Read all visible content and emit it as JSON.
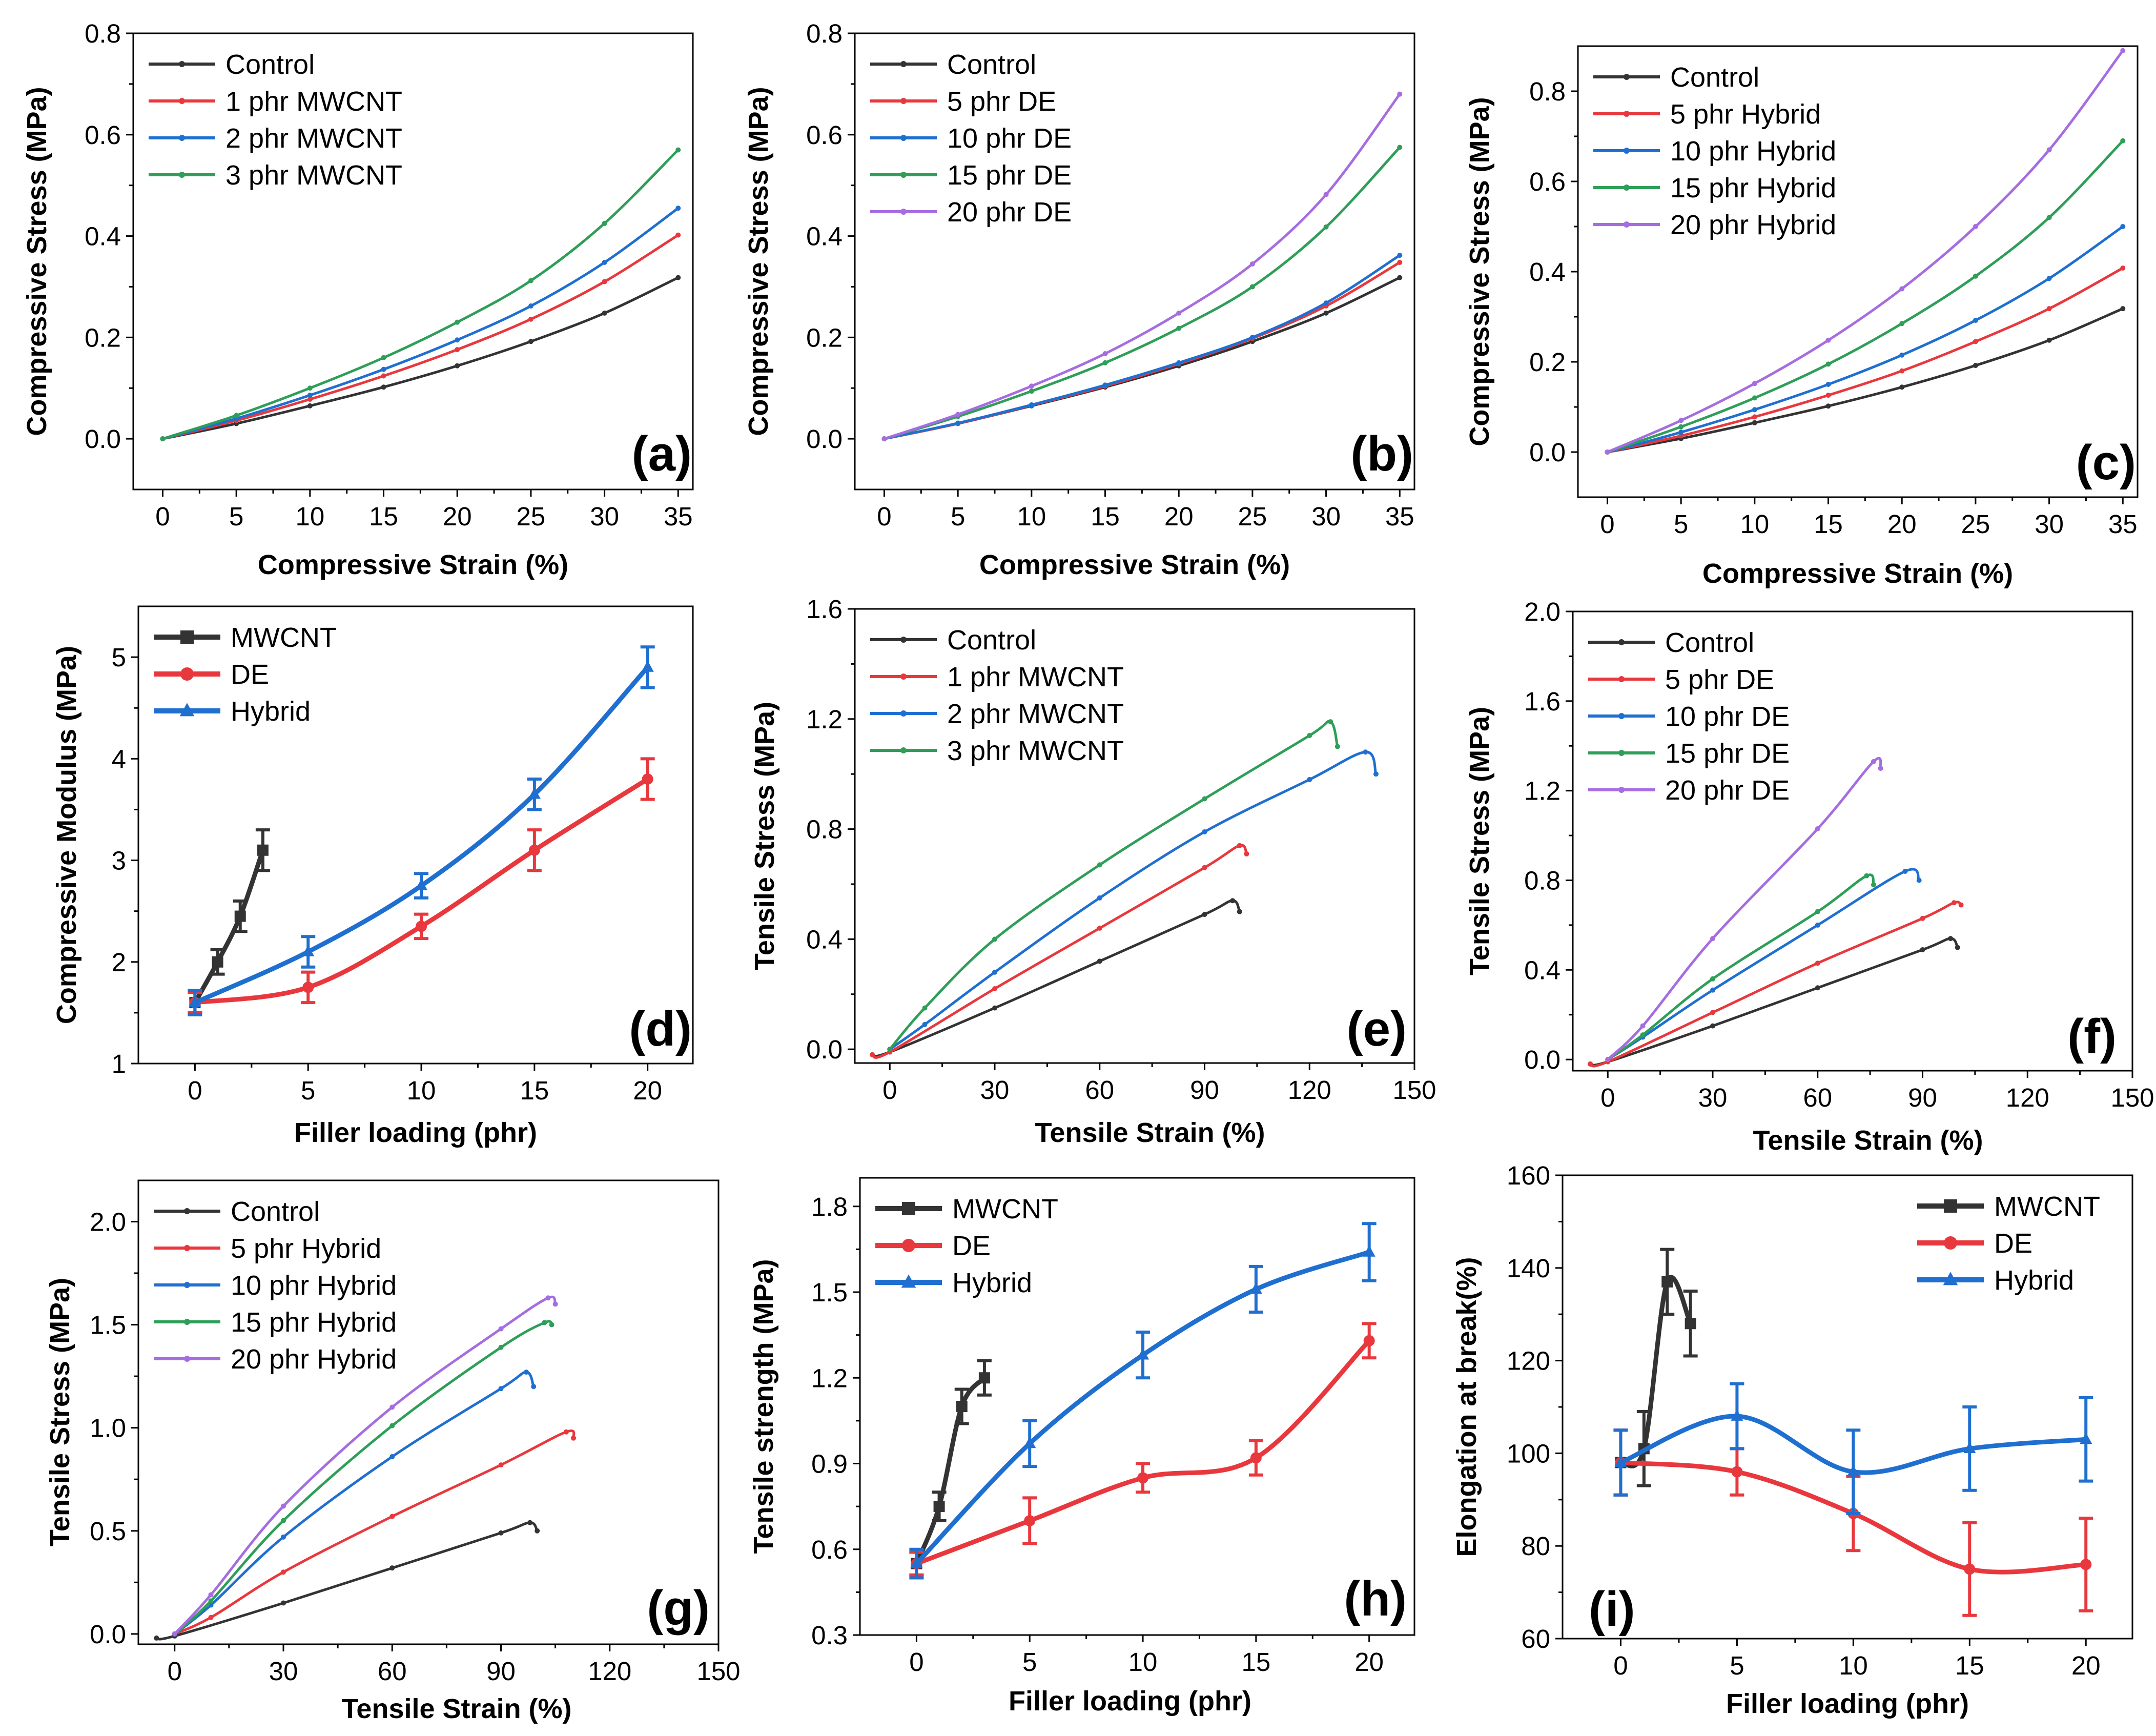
{
  "colors": {
    "Control": "#333333",
    "MWCNT": "#333333",
    "DE": "#e8383d",
    "Hybrid": "#1f6fd1",
    "red": "#e8383d",
    "blue": "#1f6fd1",
    "green": "#2e9e58",
    "purple": "#a56de0"
  },
  "chart_data": [
    {
      "id": "a",
      "type": "line",
      "panel_label": "(a)",
      "xlabel": "Compressive Strain (%)",
      "ylabel": "Compressive Stress (MPa)",
      "xlim": [
        -2,
        36
      ],
      "ylim": [
        -0.1,
        0.8
      ],
      "xticks": [
        0,
        5,
        10,
        15,
        20,
        25,
        30,
        35
      ],
      "yticks": [
        0.0,
        0.2,
        0.4,
        0.6,
        0.8
      ],
      "ydec": 1,
      "legend": "top-left",
      "series": [
        {
          "name": "Control",
          "color": "#333333",
          "x": [
            0,
            5,
            10,
            15,
            20,
            25,
            30,
            35
          ],
          "y": [
            0,
            0.03,
            0.065,
            0.102,
            0.144,
            0.192,
            0.248,
            0.318
          ]
        },
        {
          "name": "1 phr MWCNT",
          "color": "#e8383d",
          "x": [
            0,
            5,
            10,
            15,
            20,
            25,
            30,
            35
          ],
          "y": [
            0,
            0.036,
            0.078,
            0.124,
            0.176,
            0.236,
            0.31,
            0.402
          ]
        },
        {
          "name": "2 phr MWCNT",
          "color": "#1f6fd1",
          "x": [
            0,
            5,
            10,
            15,
            20,
            25,
            30,
            35
          ],
          "y": [
            0,
            0.04,
            0.086,
            0.137,
            0.195,
            0.262,
            0.348,
            0.455
          ]
        },
        {
          "name": "3 phr MWCNT",
          "color": "#2e9e58",
          "x": [
            0,
            5,
            10,
            15,
            20,
            25,
            30,
            35
          ],
          "y": [
            0,
            0.046,
            0.1,
            0.16,
            0.23,
            0.312,
            0.425,
            0.57
          ]
        }
      ]
    },
    {
      "id": "b",
      "type": "line",
      "panel_label": "(b)",
      "xlabel": "Compressive Strain (%)",
      "ylabel": "Compressive Stress (MPa)",
      "xlim": [
        -2,
        36
      ],
      "ylim": [
        -0.1,
        0.8
      ],
      "xticks": [
        0,
        5,
        10,
        15,
        20,
        25,
        30,
        35
      ],
      "yticks": [
        0.0,
        0.2,
        0.4,
        0.6,
        0.8
      ],
      "ydec": 1,
      "legend": "top-left",
      "series": [
        {
          "name": "Control",
          "color": "#333333",
          "x": [
            0,
            5,
            10,
            15,
            20,
            25,
            30,
            35
          ],
          "y": [
            0,
            0.03,
            0.065,
            0.102,
            0.144,
            0.192,
            0.248,
            0.318
          ]
        },
        {
          "name": "5 phr DE",
          "color": "#e8383d",
          "x": [
            0,
            5,
            10,
            15,
            20,
            25,
            30,
            35
          ],
          "y": [
            0,
            0.03,
            0.066,
            0.104,
            0.148,
            0.198,
            0.262,
            0.348
          ]
        },
        {
          "name": "10 phr DE",
          "color": "#1f6fd1",
          "x": [
            0,
            5,
            10,
            15,
            20,
            25,
            30,
            35
          ],
          "y": [
            0,
            0.031,
            0.067,
            0.106,
            0.15,
            0.2,
            0.268,
            0.362
          ]
        },
        {
          "name": "15 phr DE",
          "color": "#2e9e58",
          "x": [
            0,
            5,
            10,
            15,
            20,
            25,
            30,
            35
          ],
          "y": [
            0,
            0.044,
            0.094,
            0.15,
            0.218,
            0.3,
            0.418,
            0.575
          ]
        },
        {
          "name": "20 phr DE",
          "color": "#a56de0",
          "x": [
            0,
            5,
            10,
            15,
            20,
            25,
            30,
            35
          ],
          "y": [
            0,
            0.048,
            0.104,
            0.168,
            0.248,
            0.345,
            0.482,
            0.68
          ]
        }
      ]
    },
    {
      "id": "c",
      "type": "line",
      "panel_label": "(c)",
      "xlabel": "Compressive Strain (%)",
      "ylabel": "Compressive Stress (MPa)",
      "xlim": [
        -2,
        36
      ],
      "ylim": [
        -0.1,
        0.9
      ],
      "xticks": [
        0,
        5,
        10,
        15,
        20,
        25,
        30,
        35
      ],
      "yticks": [
        0.0,
        0.2,
        0.4,
        0.6,
        0.8
      ],
      "ydec": 1,
      "legend": "top-left",
      "series": [
        {
          "name": "Control",
          "color": "#333333",
          "x": [
            0,
            5,
            10,
            15,
            20,
            25,
            30,
            35
          ],
          "y": [
            0,
            0.03,
            0.065,
            0.102,
            0.144,
            0.192,
            0.248,
            0.318
          ]
        },
        {
          "name": "5 phr Hybrid",
          "color": "#e8383d",
          "x": [
            0,
            5,
            10,
            15,
            20,
            25,
            30,
            35
          ],
          "y": [
            0,
            0.036,
            0.078,
            0.126,
            0.18,
            0.245,
            0.318,
            0.408
          ]
        },
        {
          "name": "10 phr Hybrid",
          "color": "#1f6fd1",
          "x": [
            0,
            5,
            10,
            15,
            20,
            25,
            30,
            35
          ],
          "y": [
            0,
            0.044,
            0.094,
            0.15,
            0.215,
            0.292,
            0.385,
            0.5
          ]
        },
        {
          "name": "15 phr Hybrid",
          "color": "#2e9e58",
          "x": [
            0,
            5,
            10,
            15,
            20,
            25,
            30,
            35
          ],
          "y": [
            0,
            0.056,
            0.12,
            0.195,
            0.285,
            0.39,
            0.52,
            0.69
          ]
        },
        {
          "name": "20 phr Hybrid",
          "color": "#a56de0",
          "x": [
            0,
            5,
            10,
            15,
            20,
            25,
            30,
            35
          ],
          "y": [
            0,
            0.07,
            0.152,
            0.248,
            0.362,
            0.5,
            0.67,
            0.89
          ]
        }
      ]
    },
    {
      "id": "d",
      "type": "line",
      "panel_label": "(d)",
      "xlabel": "Filler loading (phr)",
      "ylabel": "Compressive Modulus (MPa)",
      "xlim": [
        -2.5,
        22
      ],
      "ylim": [
        1,
        5.5
      ],
      "xticks": [
        0,
        5,
        10,
        15,
        20
      ],
      "yticks": [
        1,
        2,
        3,
        4,
        5
      ],
      "ydec": 0,
      "legend": "top-left",
      "series": [
        {
          "name": "MWCNT",
          "color": "#333333",
          "marker": "square",
          "x": [
            0,
            1,
            2,
            3
          ],
          "y": [
            1.6,
            2.0,
            2.45,
            3.1
          ],
          "err": [
            0.1,
            0.12,
            0.15,
            0.2
          ]
        },
        {
          "name": "DE",
          "color": "#e8383d",
          "marker": "circle",
          "x": [
            0,
            5,
            10,
            15,
            20
          ],
          "y": [
            1.6,
            1.75,
            2.35,
            3.1,
            3.8
          ],
          "err": [
            0.1,
            0.15,
            0.12,
            0.2,
            0.2
          ]
        },
        {
          "name": "Hybrid",
          "color": "#1f6fd1",
          "marker": "triangle",
          "x": [
            0,
            5,
            10,
            15,
            20
          ],
          "y": [
            1.6,
            2.1,
            2.75,
            3.65,
            4.9
          ],
          "err": [
            0.12,
            0.15,
            0.12,
            0.15,
            0.2
          ]
        }
      ]
    },
    {
      "id": "e",
      "type": "line",
      "panel_label": "(e)",
      "xlabel": "Tensile Strain (%)",
      "ylabel": "Tensile Stress (MPa)",
      "xlim": [
        -10,
        150
      ],
      "ylim": [
        -0.05,
        1.6
      ],
      "xticks": [
        0,
        30,
        60,
        90,
        120,
        150
      ],
      "yticks": [
        0.0,
        0.4,
        0.8,
        1.2,
        1.6
      ],
      "ydec": 1,
      "legend": "top-left",
      "series": [
        {
          "name": "Control",
          "color": "#333333",
          "x": [
            -5,
            0,
            30,
            60,
            90,
            98,
            100
          ],
          "y": [
            -0.02,
            -0.01,
            0.15,
            0.32,
            0.49,
            0.54,
            0.5
          ]
        },
        {
          "name": "1 phr MWCNT",
          "color": "#e8383d",
          "x": [
            -5,
            0,
            30,
            60,
            90,
            100,
            102
          ],
          "y": [
            -0.02,
            -0.01,
            0.22,
            0.44,
            0.66,
            0.74,
            0.71
          ]
        },
        {
          "name": "2 phr MWCNT",
          "color": "#1f6fd1",
          "x": [
            0,
            10,
            30,
            60,
            90,
            120,
            136,
            139
          ],
          "y": [
            0,
            0.09,
            0.28,
            0.55,
            0.79,
            0.98,
            1.08,
            1.0
          ]
        },
        {
          "name": "3 phr MWCNT",
          "color": "#2e9e58",
          "x": [
            0,
            10,
            30,
            60,
            90,
            120,
            126,
            128
          ],
          "y": [
            0,
            0.15,
            0.4,
            0.67,
            0.91,
            1.14,
            1.19,
            1.1
          ]
        }
      ]
    },
    {
      "id": "f",
      "type": "line",
      "panel_label": "(f)",
      "xlabel": "Tensile Strain (%)",
      "ylabel": "Tensile Stress (MPa)",
      "xlim": [
        -10,
        150
      ],
      "ylim": [
        -0.05,
        2.0
      ],
      "xticks": [
        0,
        30,
        60,
        90,
        120,
        150
      ],
      "yticks": [
        0.0,
        0.4,
        0.8,
        1.2,
        1.6,
        2.0
      ],
      "ydec": 1,
      "legend": "top-left",
      "series": [
        {
          "name": "Control",
          "color": "#333333",
          "x": [
            -5,
            0,
            30,
            60,
            90,
            98,
            100
          ],
          "y": [
            -0.02,
            -0.01,
            0.15,
            0.32,
            0.49,
            0.54,
            0.5
          ]
        },
        {
          "name": "5 phr DE",
          "color": "#e8383d",
          "x": [
            -5,
            0,
            30,
            60,
            90,
            99,
            101
          ],
          "y": [
            -0.02,
            -0.01,
            0.21,
            0.43,
            0.63,
            0.7,
            0.69
          ]
        },
        {
          "name": "10 phr DE",
          "color": "#1f6fd1",
          "x": [
            0,
            10,
            30,
            60,
            85,
            89
          ],
          "y": [
            0,
            0.1,
            0.31,
            0.6,
            0.84,
            0.8
          ]
        },
        {
          "name": "15 phr DE",
          "color": "#2e9e58",
          "x": [
            0,
            10,
            30,
            60,
            74,
            76
          ],
          "y": [
            0,
            0.11,
            0.36,
            0.66,
            0.82,
            0.78
          ]
        },
        {
          "name": "20 phr DE",
          "color": "#a56de0",
          "x": [
            0,
            10,
            30,
            60,
            76,
            78
          ],
          "y": [
            0,
            0.15,
            0.54,
            1.03,
            1.33,
            1.3
          ]
        }
      ]
    },
    {
      "id": "g",
      "type": "line",
      "panel_label": "(g)",
      "xlabel": "Tensile Strain (%)",
      "ylabel": "Tensile Stress (MPa)",
      "xlim": [
        -10,
        150
      ],
      "ylim": [
        -0.05,
        2.2
      ],
      "xticks": [
        0,
        30,
        60,
        90,
        120,
        150
      ],
      "yticks": [
        0.0,
        0.5,
        1.0,
        1.5,
        2.0
      ],
      "ydec": 1,
      "legend": "top-left",
      "series": [
        {
          "name": "Control",
          "color": "#333333",
          "x": [
            -5,
            0,
            30,
            60,
            90,
            98,
            100
          ],
          "y": [
            -0.02,
            -0.01,
            0.15,
            0.32,
            0.49,
            0.54,
            0.5
          ]
        },
        {
          "name": "5 phr Hybrid",
          "color": "#e8383d",
          "x": [
            0,
            10,
            30,
            60,
            90,
            108,
            110
          ],
          "y": [
            0,
            0.08,
            0.3,
            0.57,
            0.82,
            0.98,
            0.95
          ]
        },
        {
          "name": "10 phr Hybrid",
          "color": "#1f6fd1",
          "x": [
            0,
            10,
            30,
            60,
            90,
            97,
            99
          ],
          "y": [
            0,
            0.14,
            0.47,
            0.86,
            1.19,
            1.27,
            1.2
          ]
        },
        {
          "name": "15 phr Hybrid",
          "color": "#2e9e58",
          "x": [
            0,
            10,
            30,
            60,
            90,
            102,
            104
          ],
          "y": [
            0,
            0.16,
            0.55,
            1.01,
            1.39,
            1.51,
            1.5
          ]
        },
        {
          "name": "20 phr Hybrid",
          "color": "#a56de0",
          "x": [
            0,
            10,
            30,
            60,
            90,
            103,
            105
          ],
          "y": [
            0,
            0.19,
            0.62,
            1.1,
            1.48,
            1.63,
            1.6
          ]
        }
      ]
    },
    {
      "id": "h",
      "type": "line",
      "panel_label": "(h)",
      "xlabel": "Filler loading (phr)",
      "ylabel": "Tensile strength (MPa)",
      "xlim": [
        -2.5,
        22
      ],
      "ylim": [
        0.3,
        1.9
      ],
      "xticks": [
        0,
        5,
        10,
        15,
        20
      ],
      "yticks": [
        0.3,
        0.6,
        0.9,
        1.2,
        1.5,
        1.8
      ],
      "ydec": 1,
      "legend": "top-left",
      "series": [
        {
          "name": "MWCNT",
          "color": "#333333",
          "marker": "square",
          "x": [
            0,
            1,
            2,
            3
          ],
          "y": [
            0.55,
            0.75,
            1.1,
            1.2
          ],
          "err": [
            0.04,
            0.05,
            0.06,
            0.06
          ]
        },
        {
          "name": "DE",
          "color": "#e8383d",
          "marker": "circle",
          "x": [
            0,
            5,
            10,
            15,
            20
          ],
          "y": [
            0.55,
            0.7,
            0.85,
            0.92,
            1.33
          ],
          "err": [
            0.04,
            0.08,
            0.05,
            0.06,
            0.06
          ]
        },
        {
          "name": "Hybrid",
          "color": "#1f6fd1",
          "marker": "triangle",
          "x": [
            0,
            5,
            10,
            15,
            20
          ],
          "y": [
            0.55,
            0.97,
            1.28,
            1.51,
            1.64
          ],
          "err": [
            0.05,
            0.08,
            0.08,
            0.08,
            0.1
          ]
        }
      ]
    },
    {
      "id": "i",
      "type": "line",
      "panel_label": "(i)",
      "xlabel": "Filler loading (phr)",
      "ylabel": "Elongation at break(%)",
      "xlim": [
        -2.5,
        22
      ],
      "ylim": [
        60,
        160
      ],
      "xticks": [
        0,
        5,
        10,
        15,
        20
      ],
      "yticks": [
        60,
        80,
        100,
        120,
        140,
        160
      ],
      "ydec": 0,
      "legend": "top-right",
      "series": [
        {
          "name": "MWCNT",
          "color": "#333333",
          "marker": "square",
          "x": [
            0,
            1,
            2,
            3
          ],
          "y": [
            98,
            101,
            137,
            128
          ],
          "err": [
            7,
            8,
            7,
            7
          ]
        },
        {
          "name": "DE",
          "color": "#e8383d",
          "marker": "circle",
          "x": [
            0,
            5,
            10,
            15,
            20
          ],
          "y": [
            98,
            96,
            87,
            75,
            76
          ],
          "err": [
            7,
            5,
            8,
            10,
            10
          ]
        },
        {
          "name": "Hybrid",
          "color": "#1f6fd1",
          "marker": "triangle",
          "x": [
            0,
            5,
            10,
            15,
            20
          ],
          "y": [
            98,
            108,
            96,
            101,
            103
          ],
          "err": [
            7,
            7,
            9,
            9,
            9
          ]
        }
      ]
    }
  ]
}
